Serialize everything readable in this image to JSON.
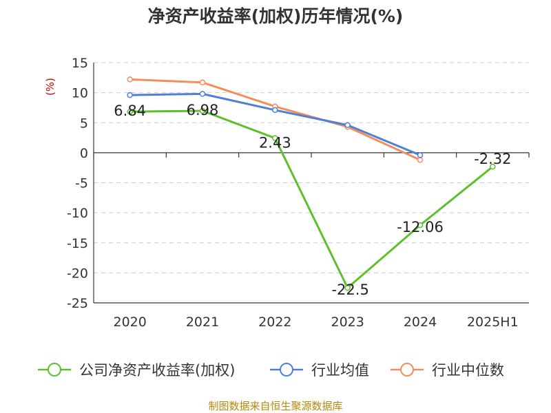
{
  "chart_data": {
    "type": "line",
    "title": "净资产收益率(加权)历年情况(%)",
    "ylabel": "(%)",
    "xlabel": "",
    "categories": [
      "2020",
      "2021",
      "2022",
      "2023",
      "2024",
      "2025H1"
    ],
    "ylim": [
      -25,
      15
    ],
    "yticks": [
      15,
      10,
      5,
      0,
      -5,
      -10,
      -15,
      -20,
      -25
    ],
    "grid": true,
    "legend_position": "bottom",
    "series": [
      {
        "name": "公司净资产收益率(加权)",
        "color": "#5cc02a",
        "values": [
          6.84,
          6.98,
          2.43,
          -22.5,
          -12.06,
          -2.32
        ],
        "labels": [
          "6.84",
          "6.98",
          "2.43",
          "-22.5",
          "-12.06",
          "-2.32"
        ]
      },
      {
        "name": "行业均值",
        "color": "#4f7fd6",
        "values": [
          9.6,
          9.8,
          7.1,
          4.6,
          -0.4,
          null
        ]
      },
      {
        "name": "行业中位数",
        "color": "#f58c5a",
        "values": [
          12.2,
          11.7,
          7.7,
          4.3,
          -1.2,
          null
        ]
      }
    ],
    "source": "制图数据来自恒生聚源数据库"
  }
}
